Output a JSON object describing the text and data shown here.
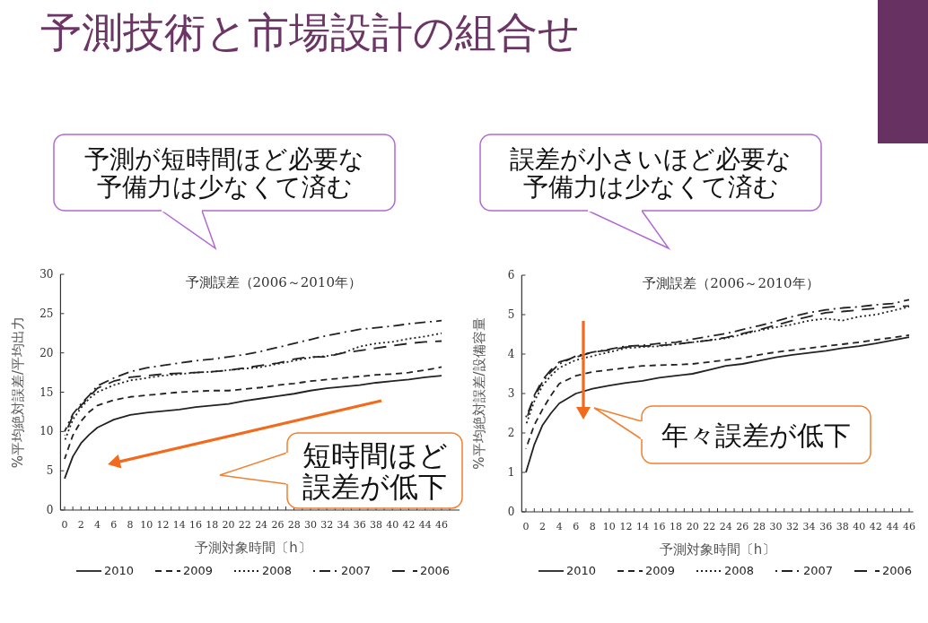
{
  "chart_data": [
    {
      "type": "line",
      "title": "予測誤差（2006～2010年）",
      "xlabel": "予測対象時間〔h〕",
      "ylabel": "%平均絶対誤差/平均出力",
      "annotations": [
        "予測技術と市場設計の組合せ",
        "予測が短時間ほど必要な予備力は少なくて済む",
        "短時間ほど誤差が低下"
      ],
      "x": [
        0,
        1,
        2,
        3,
        4,
        6,
        8,
        10,
        12,
        14,
        16,
        18,
        20,
        22,
        24,
        26,
        28,
        30,
        32,
        34,
        36,
        38,
        40,
        42,
        44,
        46
      ],
      "xlim": [
        -0.5,
        48.2
      ],
      "ylim": [
        0,
        30
      ],
      "xticks": [
        0,
        {
          "value": 1,
          "label": null
        },
        2,
        {
          "value": 3,
          "label": null
        },
        4,
        {
          "value": 5,
          "label": null
        },
        6,
        {
          "value": 7,
          "label": null
        },
        8,
        {
          "value": 9,
          "label": null
        },
        10,
        {
          "value": 11,
          "label": null
        },
        12,
        {
          "value": 13,
          "label": null
        },
        14,
        {
          "value": 15,
          "label": null
        },
        16,
        {
          "value": 17,
          "label": null
        },
        18,
        {
          "value": 19,
          "label": null
        },
        20,
        {
          "value": 21,
          "label": null
        },
        22,
        {
          "value": 23,
          "label": null
        },
        24,
        {
          "value": 25,
          "label": null
        },
        26,
        {
          "value": 27,
          "label": null
        },
        28,
        {
          "value": 29,
          "label": null
        },
        30,
        {
          "value": 31,
          "label": null
        },
        32,
        {
          "value": 33,
          "label": null
        },
        34,
        {
          "value": 35,
          "label": null
        },
        36,
        {
          "value": 37,
          "label": null
        },
        38,
        {
          "value": 39,
          "label": null
        },
        40,
        {
          "value": 41,
          "label": null
        },
        42,
        {
          "value": 43,
          "label": null
        },
        44,
        {
          "value": 45,
          "label": null
        },
        46,
        {
          "value": 47,
          "label": null
        }
      ],
      "yticks": [
        0,
        5,
        10,
        15,
        20,
        25,
        30
      ],
      "grid": false,
      "legend": "bottom",
      "marker": "none",
      "series": [
        {
          "name": "2010",
          "color": "#222222",
          "line_style": "solid",
          "values": [
            4,
            6.8,
            8.5,
            9.6,
            10.5,
            11.5,
            12.1,
            12.4,
            12.6,
            12.8,
            13.1,
            13.3,
            13.5,
            13.9,
            14.2,
            14.5,
            14.8,
            15.2,
            15.5,
            15.7,
            15.9,
            16.2,
            16.4,
            16.6,
            16.9,
            17.1
          ]
        },
        {
          "name": "2009",
          "color": "#222222",
          "line_style": "dashed",
          "values": [
            6.5,
            9.5,
            11.3,
            12.5,
            13.3,
            14.0,
            14.4,
            14.6,
            14.8,
            15.0,
            15.1,
            15.2,
            15.2,
            15.4,
            15.6,
            15.9,
            16.1,
            16.4,
            16.6,
            16.8,
            17.0,
            17.2,
            17.3,
            17.5,
            17.8,
            18.2
          ]
        },
        {
          "name": "2008",
          "color": "#222222",
          "line_style": "dotted",
          "values": [
            8.8,
            11.5,
            13.0,
            14.2,
            15.0,
            15.9,
            16.5,
            16.8,
            17.1,
            17.3,
            17.5,
            17.6,
            17.8,
            18.0,
            18.2,
            18.6,
            19.0,
            19.4,
            19.6,
            20.0,
            20.8,
            21.2,
            21.4,
            21.8,
            22.1,
            22.5
          ]
        },
        {
          "name": "2007",
          "color": "#222222",
          "line_style": "dashdot",
          "values": [
            10,
            12.2,
            13.5,
            14.6,
            15.8,
            16.8,
            17.6,
            18.1,
            18.4,
            18.7,
            19.0,
            19.2,
            19.5,
            19.8,
            20.2,
            20.7,
            21.2,
            21.7,
            22.2,
            22.6,
            23.0,
            23.2,
            23.4,
            23.7,
            23.9,
            24.1
          ]
        },
        {
          "name": "2006",
          "color": "#222222",
          "line_style": "longdash",
          "values": [
            9.5,
            12.0,
            13.3,
            14.4,
            15.5,
            16.4,
            16.9,
            17.1,
            17.3,
            17.4,
            17.5,
            17.6,
            17.8,
            18.1,
            18.4,
            18.7,
            19.2,
            19.5,
            19.5,
            20.0,
            20.3,
            20.6,
            20.9,
            21.2,
            21.4,
            21.5
          ]
        }
      ]
    },
    {
      "type": "line",
      "title": "予測誤差（2006～2010年）",
      "xlabel": "予測対象時間〔h〕",
      "ylabel": "%平均絶対誤差/設備容量",
      "annotations": [
        "誤差が小さいほど必要な予備力は少なくて済む",
        "年々誤差が低下"
      ],
      "x": [
        0,
        1,
        2,
        3,
        4,
        6,
        8,
        10,
        12,
        14,
        16,
        18,
        20,
        22,
        24,
        26,
        28,
        30,
        32,
        34,
        36,
        38,
        40,
        42,
        44,
        46
      ],
      "xlim": [
        -0.5,
        46.5
      ],
      "ylim": [
        0,
        6
      ],
      "xticks": [
        0,
        {
          "value": 1,
          "label": null
        },
        2,
        {
          "value": 3,
          "label": null
        },
        4,
        {
          "value": 5,
          "label": null
        },
        6,
        {
          "value": 7,
          "label": null
        },
        8,
        {
          "value": 9,
          "label": null
        },
        10,
        {
          "value": 11,
          "label": null
        },
        12,
        {
          "value": 13,
          "label": null
        },
        14,
        {
          "value": 15,
          "label": null
        },
        16,
        {
          "value": 17,
          "label": null
        },
        18,
        {
          "value": 19,
          "label": null
        },
        20,
        {
          "value": 21,
          "label": null
        },
        22,
        {
          "value": 23,
          "label": null
        },
        24,
        {
          "value": 25,
          "label": null
        },
        26,
        {
          "value": 27,
          "label": null
        },
        28,
        {
          "value": 29,
          "label": null
        },
        30,
        {
          "value": 31,
          "label": null
        },
        32,
        {
          "value": 33,
          "label": null
        },
        34,
        {
          "value": 35,
          "label": null
        },
        36,
        {
          "value": 37,
          "label": null
        },
        38,
        {
          "value": 39,
          "label": null
        },
        40,
        {
          "value": 41,
          "label": null
        },
        42,
        {
          "value": 43,
          "label": null
        },
        44,
        {
          "value": 45,
          "label": null
        },
        46
      ],
      "yticks": [
        0,
        1,
        2,
        3,
        4,
        5,
        6
      ],
      "grid": false,
      "legend": "bottom",
      "marker": "none",
      "series": [
        {
          "name": "2010",
          "color": "#222222",
          "line_style": "solid",
          "values": [
            1.0,
            1.7,
            2.2,
            2.5,
            2.75,
            3.0,
            3.12,
            3.2,
            3.27,
            3.32,
            3.4,
            3.45,
            3.5,
            3.6,
            3.7,
            3.75,
            3.83,
            3.92,
            3.98,
            4.03,
            4.08,
            4.15,
            4.2,
            4.27,
            4.35,
            4.43
          ]
        },
        {
          "name": "2009",
          "color": "#222222",
          "line_style": "dashed",
          "values": [
            1.6,
            2.2,
            2.6,
            2.95,
            3.25,
            3.45,
            3.55,
            3.6,
            3.65,
            3.7,
            3.72,
            3.73,
            3.75,
            3.8,
            3.85,
            3.9,
            3.98,
            4.05,
            4.1,
            4.15,
            4.2,
            4.25,
            4.3,
            4.36,
            4.42,
            4.48
          ]
        },
        {
          "name": "2008",
          "color": "#222222",
          "line_style": "dotted",
          "values": [
            2.2,
            2.8,
            3.2,
            3.45,
            3.65,
            3.85,
            3.95,
            4.05,
            4.15,
            4.18,
            4.2,
            4.25,
            4.3,
            4.35,
            4.4,
            4.5,
            4.6,
            4.68,
            4.75,
            4.85,
            4.9,
            4.85,
            4.95,
            5.0,
            5.1,
            5.2
          ]
        },
        {
          "name": "2007",
          "color": "#222222",
          "line_style": "dashdot",
          "values": [
            2.4,
            2.9,
            3.3,
            3.55,
            3.75,
            3.95,
            4.05,
            4.12,
            4.2,
            4.22,
            4.27,
            4.3,
            4.38,
            4.45,
            4.52,
            4.62,
            4.72,
            4.83,
            4.95,
            5.05,
            5.12,
            5.17,
            5.2,
            5.25,
            5.28,
            5.38
          ]
        },
        {
          "name": "2006",
          "color": "#222222",
          "line_style": "longdash",
          "values": [
            2.3,
            2.95,
            3.35,
            3.6,
            3.8,
            3.92,
            4.05,
            4.1,
            4.18,
            4.2,
            4.22,
            4.25,
            4.3,
            4.35,
            4.42,
            4.52,
            4.62,
            4.73,
            4.85,
            4.95,
            5.05,
            5.08,
            5.12,
            5.16,
            5.2,
            5.22
          ]
        }
      ]
    }
  ]
}
